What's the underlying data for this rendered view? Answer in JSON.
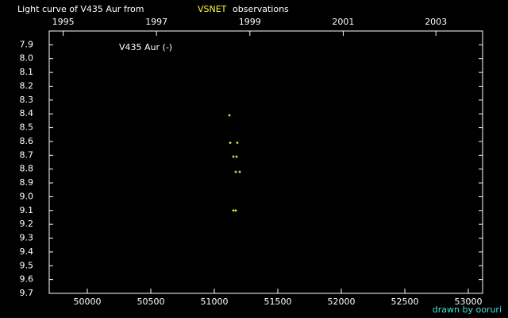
{
  "chart_data": {
    "type": "scatter",
    "title_parts": [
      "Light curve of V435 Aur from",
      "VSNET",
      "observations"
    ],
    "legend": "V435 Aur (-)",
    "credit": "drawn by ooruri",
    "series": [
      {
        "name": "V435 Aur",
        "color": "#ffff40",
        "x": [
          51119,
          51125,
          51181,
          51150,
          51175,
          51169,
          51200,
          51150,
          51169
        ],
        "values": [
          8.41,
          8.61,
          8.61,
          8.71,
          8.71,
          8.82,
          8.82,
          9.1,
          9.1
        ]
      }
    ],
    "xlim": [
      49700,
      53112.5
    ],
    "xticks": [
      50000,
      50500,
      51000,
      51500,
      52000,
      52500,
      53000
    ],
    "x2ticks": [
      {
        "value": 49810,
        "label": "1995"
      },
      {
        "value": 50545,
        "label": "1997"
      },
      {
        "value": 51280,
        "label": "1999"
      },
      {
        "value": 52015,
        "label": "2001"
      },
      {
        "value": 52745,
        "label": "2003"
      }
    ],
    "ylim": [
      7.8,
      9.7
    ],
    "yticks": [
      7.9,
      {
        "value": 8.0,
        "label": "8.0"
      },
      8.1,
      8.2,
      8.3,
      8.4,
      8.5,
      8.6,
      8.7,
      8.8,
      8.9,
      {
        "value": 9.0,
        "label": "9.0"
      },
      9.1,
      9.2,
      9.3,
      9.4,
      9.5,
      9.6,
      9.7
    ]
  }
}
